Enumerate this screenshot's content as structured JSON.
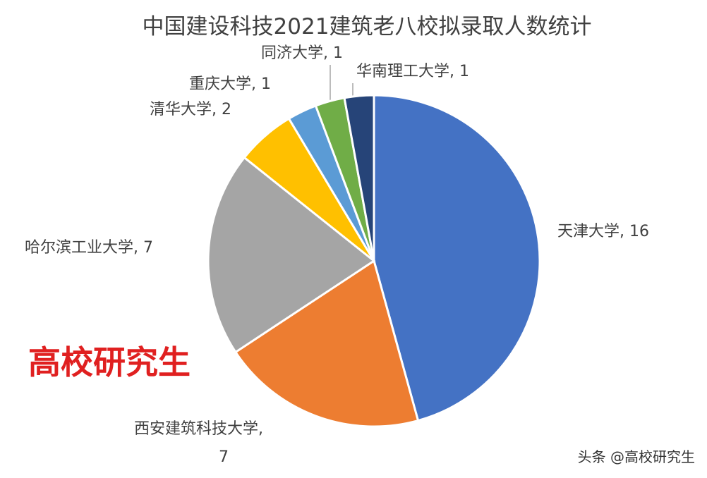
{
  "chart_data": {
    "type": "pie",
    "title": "中国建设科技2021建筑老八校拟录取人数统计",
    "categories": [
      "天津大学",
      "西安建筑科技大学",
      "哈尔滨工业大学",
      "清华大学",
      "重庆大学",
      "同济大学",
      "华南理工大学"
    ],
    "values": [
      16,
      7,
      7,
      2,
      1,
      1,
      1
    ],
    "colors": [
      "#4472c4",
      "#ed7d31",
      "#a5a5a5",
      "#ffc000",
      "#5b9bd5",
      "#70ad47",
      "#264478"
    ],
    "label_separator": ", ",
    "annotations": [
      "高校研究生",
      "头条 @高校研究生"
    ]
  }
}
